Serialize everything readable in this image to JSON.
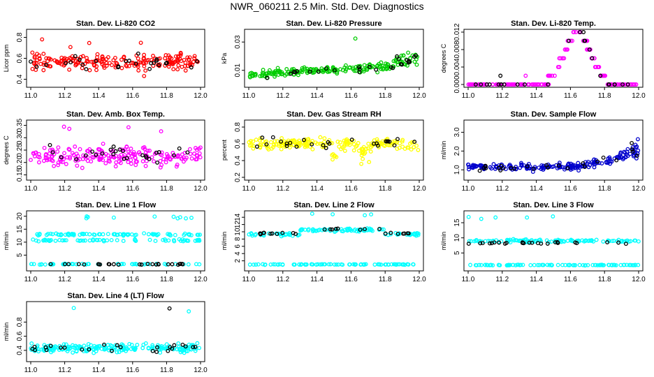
{
  "page_title": "NWR_060211  2.5 Min. Std. Dev. Diagnostics",
  "x_ticks": [
    "11.0",
    "11.2",
    "11.4",
    "11.6",
    "11.8",
    "12.0"
  ],
  "colors": {
    "ref_points": "#000000",
    "axis": "#000000",
    "background": "#ffffff"
  },
  "chart_data": [
    {
      "type": "scatter",
      "title": "Stan. Dev. Li-820 CO2",
      "ylabel": "Licor ppm",
      "color": "#ff0000",
      "xlim": [
        11.0,
        12.0
      ],
      "ylim": [
        0.35,
        0.85
      ],
      "yticks": [
        "0.4",
        "0.6",
        "0.8"
      ],
      "grid": false,
      "series": [
        {
          "values_summary": "scatter centered near 0.55, spread 0.4–0.7, a few outliers to 0.8 and 0.35"
        }
      ]
    },
    {
      "type": "scatter",
      "title": "Stan. Dev. Li-820 Pressure",
      "ylabel": "kPa",
      "color": "#00cc00",
      "xlim": [
        11.0,
        12.0
      ],
      "ylim": [
        0.0,
        0.037
      ],
      "yticks": [
        "0.01",
        "0.03"
      ],
      "grid": false,
      "series": [
        {
          "values_summary": "mostly 0.003–0.015 with slow rise toward 12.0, outliers to 0.035"
        }
      ]
    },
    {
      "type": "scatter",
      "title": "Stan. Dev. Li-820 Temp.",
      "ylabel": "degrees C",
      "color": "#ff00ff",
      "xlim": [
        11.0,
        12.0
      ],
      "ylim": [
        0.0,
        0.012
      ],
      "yticks": [
        "0.000",
        "0.004",
        "0.008",
        "0.012"
      ],
      "grid": false,
      "series": [
        {
          "values_summary": "near 0 until 11.45, rising to 0.012 near 11.65, back to 0 after 11.8"
        }
      ]
    },
    {
      "type": "scatter",
      "title": "Stan. Dev. Amb. Box Temp.",
      "ylabel": "degrees C",
      "color": "#ff00ff",
      "xlim": [
        11.0,
        12.0
      ],
      "ylim": [
        0.14,
        0.36
      ],
      "yticks": [
        "0.15",
        "0.20",
        "0.25",
        "0.30",
        "0.35"
      ],
      "grid": false,
      "series": [
        {
          "values_summary": "scatter between 0.16 and 0.30, mean near 0.22"
        }
      ]
    },
    {
      "type": "scatter",
      "title": "Stan. Dev. Gas Stream RH",
      "ylabel": "percent",
      "color": "#ffff00",
      "xlim": [
        11.0,
        12.0
      ],
      "ylim": [
        0.2,
        0.85
      ],
      "yticks": [
        "0.2",
        "0.4",
        "0.6",
        "0.8"
      ],
      "grid": false,
      "series": [
        {
          "values_summary": "mostly 0.5–0.7, dips to 0.3 near 11.5 and 11.7"
        }
      ]
    },
    {
      "type": "scatter",
      "title": "Stan. Dev. Sample Flow",
      "ylabel": "ml/min",
      "color": "#0000cc",
      "xlim": [
        11.0,
        12.0
      ],
      "ylim": [
        0.6,
        3.5
      ],
      "yticks": [
        "1.0",
        "2.0",
        "3.0"
      ],
      "grid": false,
      "series": [
        {
          "values_summary": "around 1.0–1.5, rising to 2–3 after 11.85"
        }
      ]
    },
    {
      "type": "scatter",
      "title": "Stan. Dev. Line 1 Flow",
      "ylabel": "ml/min",
      "color": "#00ffff",
      "xlim": [
        11.0,
        12.0
      ],
      "ylim": [
        0,
        21
      ],
      "yticks": [
        "5",
        "10",
        "15",
        "20"
      ],
      "grid": false,
      "series": [
        {
          "values_summary": "bands at ~13 and ~11, black reference line at ~1.5, sparse outliers near 19"
        }
      ]
    },
    {
      "type": "scatter",
      "title": "Stan. Dev. Line 2 Flow",
      "ylabel": "ml/min",
      "color": "#00ffff",
      "xlim": [
        11.0,
        12.0
      ],
      "ylim": [
        0,
        15
      ],
      "yticks": [
        "2",
        "4",
        "6",
        "8",
        "10",
        "12",
        "14"
      ],
      "grid": false,
      "series": [
        {
          "values_summary": "band near 9–11 with black reference points, lower band at ~1, outliers near 15"
        }
      ]
    },
    {
      "type": "scatter",
      "title": "Stan. Dev. Line 3 Flow",
      "ylabel": "ml/min",
      "color": "#00ffff",
      "xlim": [
        11.0,
        12.0
      ],
      "ylim": [
        0,
        18
      ],
      "yticks": [
        "5",
        "10",
        "15"
      ],
      "grid": false,
      "series": [
        {
          "values_summary": "band near 8–9 with black reference points, lower band at ~1, outliers near 17"
        }
      ]
    },
    {
      "type": "scatter",
      "title": "Stan. Dev. Line 4 (LT) Flow",
      "ylabel": "ml/min",
      "color": "#00ffff",
      "xlim": [
        11.0,
        12.0
      ],
      "ylim": [
        0.28,
        1.05
      ],
      "yticks": [
        "0.4",
        "0.6",
        "0.8"
      ],
      "grid": false,
      "series": [
        {
          "values_summary": "dense band 0.35–0.5, few outliers to 1.0"
        }
      ]
    }
  ]
}
